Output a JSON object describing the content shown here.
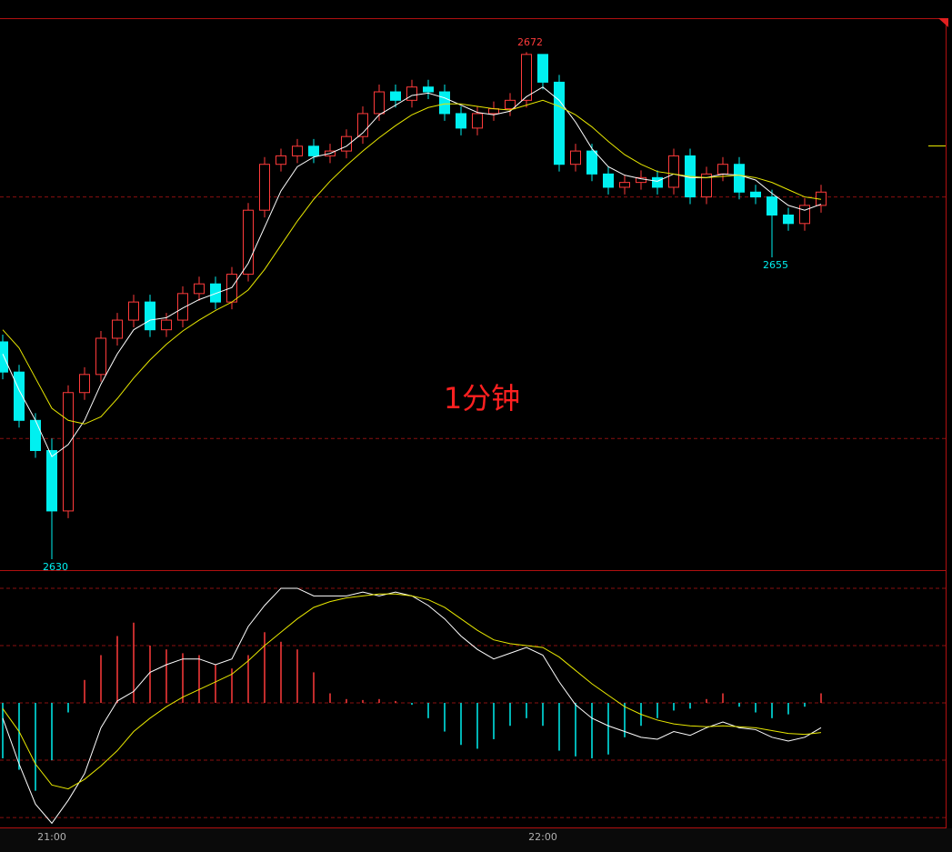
{
  "chart_data": {
    "type": "candlestick",
    "title": "1分钟",
    "categories": [
      null,
      null,
      null,
      "21:00",
      null,
      null,
      null,
      null,
      null,
      null,
      null,
      null,
      null,
      null,
      null,
      null,
      null,
      null,
      null,
      null,
      null,
      null,
      null,
      null,
      null,
      null,
      null,
      null,
      null,
      null,
      null,
      null,
      null,
      "22:00",
      null,
      null,
      null,
      null,
      null,
      null,
      null,
      null,
      null,
      null,
      null,
      null,
      null,
      null,
      null,
      null,
      null
    ],
    "open": [
      2648,
      2645.5,
      2641.5,
      2639,
      2634,
      2643.8,
      2645.3,
      2648.3,
      2649.8,
      2651.3,
      2649,
      2649.8,
      2652,
      2652.8,
      2651.3,
      2653.6,
      2658.9,
      2662.7,
      2663.4,
      2664.2,
      2663.4,
      2663.8,
      2665,
      2666.9,
      2668.7,
      2668,
      2669.1,
      2668.7,
      2666.9,
      2665.7,
      2666.9,
      2667.3,
      2668,
      2671.8,
      2669.5,
      2662.7,
      2663.8,
      2661.9,
      2660.8,
      2661.2,
      2661.6,
      2660.8,
      2663.4,
      2660,
      2661.9,
      2662.7,
      2660.4,
      2660,
      2658.5,
      2657.8,
      2659.3
    ],
    "high": [
      2648.6,
      2646.1,
      2642.1,
      2640,
      2644.4,
      2645.9,
      2648.9,
      2650.4,
      2651.9,
      2651.9,
      2650.4,
      2652.6,
      2653.4,
      2653.4,
      2654.2,
      2659.5,
      2663.3,
      2664,
      2664.8,
      2664.8,
      2664.4,
      2665.6,
      2667.5,
      2669.3,
      2669.3,
      2669.7,
      2669.7,
      2669.3,
      2667.5,
      2667.5,
      2667.9,
      2668.6,
      2672,
      2671.8,
      2670.1,
      2664.4,
      2664.4,
      2662.5,
      2661.8,
      2662.2,
      2662.2,
      2664,
      2664,
      2662.5,
      2663.3,
      2663.3,
      2661,
      2660.6,
      2659.1,
      2659.9,
      2661
    ],
    "low": [
      2644.9,
      2640.9,
      2638.4,
      2630,
      2633.4,
      2643.2,
      2644.7,
      2647.7,
      2649.2,
      2648.4,
      2648.4,
      2649.2,
      2651.4,
      2650.7,
      2650.7,
      2653,
      2658.3,
      2662.1,
      2662.8,
      2662.8,
      2662.8,
      2663.2,
      2664.4,
      2666.3,
      2667.4,
      2667.4,
      2668.1,
      2666.3,
      2665.1,
      2665.1,
      2666.3,
      2666.7,
      2667.4,
      2668.9,
      2662.1,
      2662.1,
      2661.3,
      2660.2,
      2660.2,
      2660.6,
      2660.2,
      2660.2,
      2659.4,
      2659.4,
      2661.3,
      2659.8,
      2659.4,
      2655,
      2657.2,
      2657.2,
      2658.7
    ],
    "close": [
      2645.5,
      2641.5,
      2639,
      2634,
      2643.8,
      2645.3,
      2648.3,
      2649.8,
      2651.3,
      2649,
      2649.8,
      2652,
      2652.8,
      2651.3,
      2653.6,
      2658.9,
      2662.7,
      2663.4,
      2664.2,
      2663.4,
      2663.8,
      2665,
      2666.9,
      2668.7,
      2668,
      2669.1,
      2668.7,
      2666.9,
      2665.7,
      2666.9,
      2667.3,
      2668,
      2671.8,
      2669.5,
      2662.7,
      2663.8,
      2661.9,
      2660.8,
      2661.2,
      2661.6,
      2660.8,
      2663.4,
      2660,
      2661.9,
      2662.7,
      2660.4,
      2660,
      2658.5,
      2657.8,
      2659.3,
      2660.4
    ],
    "up_color": "#ff3b3b",
    "down_color": "#00f0f0",
    "series": [
      {
        "color": "#ffffff",
        "values": [
          2647,
          2644,
          2641.5,
          2638.5,
          2639.5,
          2641.5,
          2644.5,
          2647,
          2649,
          2649.8,
          2650,
          2650.8,
          2651.5,
          2652,
          2652.5,
          2654.5,
          2657.5,
          2660.5,
          2662.5,
          2663.3,
          2663.6,
          2664.2,
          2665.3,
          2666.8,
          2667.6,
          2668.4,
          2668.6,
          2668.2,
          2667.6,
          2667,
          2666.8,
          2667.1,
          2668.3,
          2669.1,
          2668,
          2666.2,
          2664,
          2662.5,
          2661.8,
          2661.5,
          2661.3,
          2661.9,
          2661.6,
          2661.6,
          2661.9,
          2661.8,
          2661.4,
          2660.3,
          2659.3,
          2658.9,
          2659.4
        ]
      },
      {
        "color": "#e8e800",
        "values": [
          2649,
          2647.5,
          2645,
          2642.5,
          2641.5,
          2641.2,
          2641.8,
          2643.3,
          2645,
          2646.5,
          2647.8,
          2648.9,
          2649.8,
          2650.6,
          2651.3,
          2652.3,
          2654,
          2656,
          2658,
          2659.8,
          2661.3,
          2662.6,
          2663.8,
          2664.9,
          2665.9,
          2666.8,
          2667.4,
          2667.7,
          2667.7,
          2667.5,
          2667.3,
          2667.2,
          2667.6,
          2668,
          2667.5,
          2666.8,
          2665.8,
          2664.6,
          2663.5,
          2662.7,
          2662.1,
          2661.9,
          2661.7,
          2661.6,
          2661.7,
          2661.8,
          2661.6,
          2661.2,
          2660.6,
          2660,
          2659.8
        ]
      }
    ],
    "ylim": [
      2629.1,
      2674.8
    ],
    "grid_levels": [
      2660,
      2640
    ],
    "annotations": [
      {
        "index": 32,
        "value": 2672,
        "color": "#ff3b3b"
      },
      {
        "index": 3,
        "value": 2630,
        "color": "#00f0f0"
      },
      {
        "index": 47,
        "value": 2655,
        "color": "#00f0f0"
      }
    ],
    "macd": {
      "ylim": [
        -6.52,
        6.95
      ],
      "grid_levels": [
        6,
        3,
        0,
        -3,
        -6
      ],
      "hist": [
        -2.9,
        -3.5,
        -4.6,
        -3,
        -0.5,
        1.2,
        2.5,
        3.5,
        4.2,
        3,
        2.8,
        2.6,
        2.5,
        2,
        1.8,
        2.5,
        3.7,
        3.2,
        2.8,
        1.6,
        0.5,
        0.2,
        0.15,
        0.2,
        0.1,
        -0.1,
        -0.8,
        -1.5,
        -2.2,
        -2.4,
        -1.9,
        -1.2,
        -0.8,
        -1.2,
        -2.5,
        -2.8,
        -2.9,
        -2.7,
        -1.8,
        -1.2,
        -0.8,
        -0.4,
        -0.3,
        0.2,
        0.5,
        -0.2,
        -0.5,
        -0.8,
        -0.6,
        -0.2,
        0.5
      ],
      "series": [
        {
          "color": "#ffffff",
          "values": [
            -0.8,
            -3.2,
            -5.3,
            -6.3,
            -5.1,
            -3.7,
            -1.3,
            0.1,
            0.6,
            1.6,
            2,
            2.3,
            2.3,
            2,
            2.3,
            4,
            5.1,
            6,
            6,
            5.6,
            5.6,
            5.6,
            5.8,
            5.6,
            5.8,
            5.6,
            5.1,
            4.4,
            3.5,
            2.8,
            2.3,
            2.6,
            2.9,
            2.5,
            1.1,
            -0.1,
            -0.8,
            -1.2,
            -1.5,
            -1.8,
            -1.9,
            -1.5,
            -1.7,
            -1.3,
            -1,
            -1.3,
            -1.4,
            -1.8,
            -2,
            -1.8,
            -1.3
          ]
        },
        {
          "color": "#e8e800",
          "values": [
            -0.3,
            -1.5,
            -3.2,
            -4.3,
            -4.5,
            -4,
            -3.3,
            -2.5,
            -1.5,
            -0.8,
            -0.2,
            0.3,
            0.7,
            1.1,
            1.5,
            2.2,
            3,
            3.7,
            4.4,
            5,
            5.3,
            5.5,
            5.6,
            5.7,
            5.7,
            5.6,
            5.4,
            5,
            4.4,
            3.8,
            3.3,
            3.1,
            3,
            2.9,
            2.4,
            1.7,
            1,
            0.4,
            -0.2,
            -0.6,
            -0.9,
            -1.1,
            -1.2,
            -1.25,
            -1.2,
            -1.25,
            -1.3,
            -1.45,
            -1.6,
            -1.65,
            -1.55
          ]
        }
      ]
    }
  }
}
